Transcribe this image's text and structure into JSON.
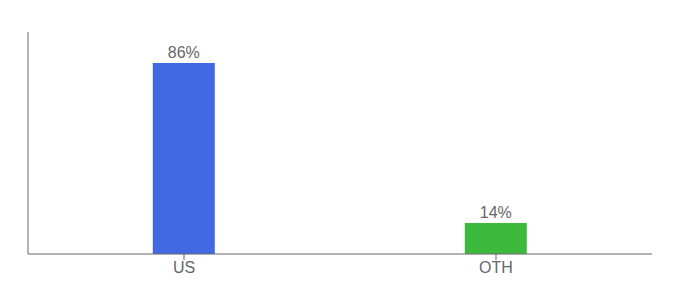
{
  "chart_data": {
    "type": "bar",
    "categories": [
      "US",
      "OTH"
    ],
    "values": [
      86,
      14
    ],
    "value_labels": [
      "86%",
      "14%"
    ],
    "colors": [
      "#4169e1",
      "#3dba3d"
    ],
    "ylim": [
      0,
      100
    ],
    "data_labels": true,
    "tick_labels": "x"
  }
}
